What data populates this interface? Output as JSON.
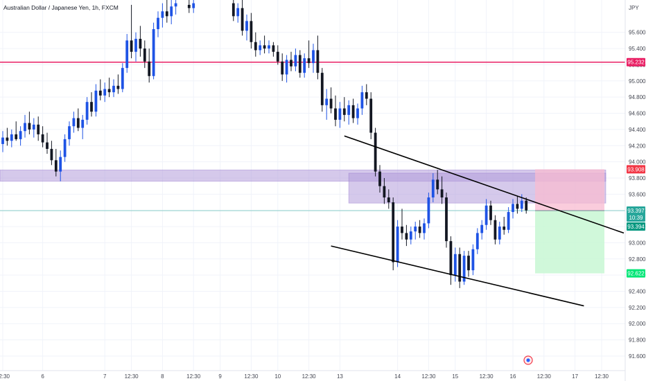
{
  "header": {
    "title": "Australian Dollar / Japanese Yen, 1h, FXCM",
    "currency": "JPY"
  },
  "colors": {
    "up": "#1e53e5",
    "down": "#131722",
    "resistance_line": "#e91e63",
    "supply_zone": "#b39ddb",
    "stop_zone": "#f8bbd0",
    "target_zone": "#c8f7d4",
    "current_price_line": "#26a69a",
    "current_badge": "#089981",
    "entry_badge": "#26a69a"
  },
  "chart_data": {
    "type": "candlestick",
    "symbol": "AUDJPY",
    "timeframe": "1h",
    "ylim": [
      91.42,
      96.0
    ],
    "y_ticks": [
      95.6,
      95.4,
      95.2,
      95.0,
      94.8,
      94.6,
      94.4,
      94.2,
      94.0,
      93.8,
      93.6,
      93.4,
      93.2,
      93.0,
      92.8,
      92.6,
      92.4,
      92.2,
      92.0,
      91.8,
      91.6
    ],
    "y_tick_labels": [
      "95.600",
      "95.400",
      "95.200",
      "95.000",
      "94.800",
      "94.600",
      "94.400",
      "94.200",
      "94.000",
      "93.800",
      "93.600",
      "93.400",
      "93.200",
      "93.000",
      "92.800",
      "92.600",
      "92.400",
      "92.200",
      "92.000",
      "91.800",
      "91.600"
    ],
    "x_ticks": [
      {
        "label": "12:30",
        "x": 0
      },
      {
        "label": "6",
        "x": 9
      },
      {
        "label": "7",
        "x": 23
      },
      {
        "label": "12:30",
        "x": 29
      },
      {
        "label": "8",
        "x": 36
      },
      {
        "label": "12:30",
        "x": 43
      },
      {
        "label": "9",
        "x": 49
      },
      {
        "label": "12:30",
        "x": 56
      },
      {
        "label": "10",
        "x": 62
      },
      {
        "label": "12:30",
        "x": 69
      },
      {
        "label": "13",
        "x": 76
      },
      {
        "label": "14",
        "x": 89
      },
      {
        "label": "12:30",
        "x": 96
      },
      {
        "label": "15",
        "x": 102
      },
      {
        "label": "12:30",
        "x": 109
      },
      {
        "label": "16",
        "x": 115
      },
      {
        "label": "12:30",
        "x": 122
      },
      {
        "label": "17",
        "x": 129
      },
      {
        "label": "12:30",
        "x": 135
      }
    ],
    "candles": [
      {
        "x": 0,
        "o": 94.22,
        "h": 94.38,
        "l": 94.12,
        "c": 94.3
      },
      {
        "x": 1,
        "o": 94.3,
        "h": 94.42,
        "l": 94.2,
        "c": 94.26
      },
      {
        "x": 2,
        "o": 94.26,
        "h": 94.4,
        "l": 94.18,
        "c": 94.34
      },
      {
        "x": 3,
        "o": 94.34,
        "h": 94.5,
        "l": 94.26,
        "c": 94.28
      },
      {
        "x": 4,
        "o": 94.28,
        "h": 94.44,
        "l": 94.2,
        "c": 94.38
      },
      {
        "x": 5,
        "o": 94.38,
        "h": 94.58,
        "l": 94.3,
        "c": 94.48
      },
      {
        "x": 6,
        "o": 94.48,
        "h": 94.62,
        "l": 94.34,
        "c": 94.4
      },
      {
        "x": 7,
        "o": 94.4,
        "h": 94.54,
        "l": 94.3,
        "c": 94.46
      },
      {
        "x": 8,
        "o": 94.46,
        "h": 94.56,
        "l": 94.26,
        "c": 94.34
      },
      {
        "x": 9,
        "o": 94.34,
        "h": 94.44,
        "l": 94.18,
        "c": 94.24
      },
      {
        "x": 10,
        "o": 94.24,
        "h": 94.36,
        "l": 94.1,
        "c": 94.16
      },
      {
        "x": 11,
        "o": 94.16,
        "h": 94.26,
        "l": 93.96,
        "c": 94.02
      },
      {
        "x": 12,
        "o": 94.02,
        "h": 94.16,
        "l": 93.82,
        "c": 93.88
      },
      {
        "x": 13,
        "o": 93.88,
        "h": 94.14,
        "l": 93.76,
        "c": 94.06
      },
      {
        "x": 14,
        "o": 94.06,
        "h": 94.34,
        "l": 94.0,
        "c": 94.28
      },
      {
        "x": 15,
        "o": 94.28,
        "h": 94.5,
        "l": 94.2,
        "c": 94.44
      },
      {
        "x": 16,
        "o": 94.44,
        "h": 94.62,
        "l": 94.36,
        "c": 94.54
      },
      {
        "x": 17,
        "o": 94.54,
        "h": 94.66,
        "l": 94.38,
        "c": 94.42
      },
      {
        "x": 18,
        "o": 94.42,
        "h": 94.58,
        "l": 94.28,
        "c": 94.52
      },
      {
        "x": 19,
        "o": 94.52,
        "h": 94.8,
        "l": 94.46,
        "c": 94.74
      },
      {
        "x": 20,
        "o": 94.74,
        "h": 94.86,
        "l": 94.56,
        "c": 94.62
      },
      {
        "x": 21,
        "o": 94.62,
        "h": 94.96,
        "l": 94.56,
        "c": 94.88
      },
      {
        "x": 22,
        "o": 94.88,
        "h": 95.02,
        "l": 94.76,
        "c": 94.82
      },
      {
        "x": 23,
        "o": 94.82,
        "h": 94.98,
        "l": 94.74,
        "c": 94.9
      },
      {
        "x": 24,
        "o": 94.9,
        "h": 95.04,
        "l": 94.8,
        "c": 94.86
      },
      {
        "x": 25,
        "o": 94.86,
        "h": 95.02,
        "l": 94.8,
        "c": 94.94
      },
      {
        "x": 26,
        "o": 94.94,
        "h": 95.08,
        "l": 94.84,
        "c": 94.9
      },
      {
        "x": 27,
        "o": 94.9,
        "h": 95.22,
        "l": 94.86,
        "c": 95.16
      },
      {
        "x": 28,
        "o": 95.16,
        "h": 95.58,
        "l": 95.1,
        "c": 95.5
      },
      {
        "x": 29,
        "o": 95.5,
        "h": 95.94,
        "l": 95.28,
        "c": 95.36
      },
      {
        "x": 30,
        "o": 95.36,
        "h": 95.6,
        "l": 95.24,
        "c": 95.52
      },
      {
        "x": 31,
        "o": 95.52,
        "h": 95.68,
        "l": 95.3,
        "c": 95.4
      },
      {
        "x": 32,
        "o": 95.4,
        "h": 95.5,
        "l": 95.16,
        "c": 95.24
      },
      {
        "x": 33,
        "o": 95.24,
        "h": 95.4,
        "l": 94.98,
        "c": 95.06
      },
      {
        "x": 34,
        "o": 95.06,
        "h": 95.72,
        "l": 95.02,
        "c": 95.64
      },
      {
        "x": 35,
        "o": 95.64,
        "h": 95.86,
        "l": 95.54,
        "c": 95.78
      },
      {
        "x": 36,
        "o": 95.78,
        "h": 95.96,
        "l": 95.66,
        "c": 95.86
      },
      {
        "x": 37,
        "o": 95.86,
        "h": 96.0,
        "l": 95.72,
        "c": 95.8
      },
      {
        "x": 38,
        "o": 95.8,
        "h": 96.0,
        "l": 95.7,
        "c": 95.92
      },
      {
        "x": 39,
        "o": 95.92,
        "h": 96.0,
        "l": 95.82,
        "c": 95.96
      },
      {
        "x": 42,
        "o": 95.94,
        "h": 96.0,
        "l": 95.84,
        "c": 95.9
      },
      {
        "x": 43,
        "o": 95.9,
        "h": 96.0,
        "l": 95.84,
        "c": 95.96
      },
      {
        "x": 52,
        "o": 95.96,
        "h": 96.0,
        "l": 95.74,
        "c": 95.8
      },
      {
        "x": 53,
        "o": 95.8,
        "h": 95.96,
        "l": 95.72,
        "c": 95.9
      },
      {
        "x": 54,
        "o": 95.9,
        "h": 96.0,
        "l": 95.56,
        "c": 95.62
      },
      {
        "x": 55,
        "o": 95.62,
        "h": 95.82,
        "l": 95.5,
        "c": 95.74
      },
      {
        "x": 56,
        "o": 95.74,
        "h": 95.84,
        "l": 95.4,
        "c": 95.48
      },
      {
        "x": 57,
        "o": 95.48,
        "h": 95.6,
        "l": 95.3,
        "c": 95.38
      },
      {
        "x": 58,
        "o": 95.38,
        "h": 95.5,
        "l": 95.32,
        "c": 95.44
      },
      {
        "x": 59,
        "o": 95.44,
        "h": 95.56,
        "l": 95.34,
        "c": 95.4
      },
      {
        "x": 60,
        "o": 95.4,
        "h": 95.5,
        "l": 95.34,
        "c": 95.44
      },
      {
        "x": 61,
        "o": 95.44,
        "h": 95.48,
        "l": 95.3,
        "c": 95.36
      },
      {
        "x": 62,
        "o": 95.36,
        "h": 95.44,
        "l": 95.2,
        "c": 95.24
      },
      {
        "x": 63,
        "o": 95.24,
        "h": 95.34,
        "l": 95.0,
        "c": 95.08
      },
      {
        "x": 64,
        "o": 95.08,
        "h": 95.32,
        "l": 94.98,
        "c": 95.26
      },
      {
        "x": 65,
        "o": 95.26,
        "h": 95.36,
        "l": 95.12,
        "c": 95.18
      },
      {
        "x": 66,
        "o": 95.18,
        "h": 95.4,
        "l": 95.12,
        "c": 95.32
      },
      {
        "x": 67,
        "o": 95.32,
        "h": 95.38,
        "l": 95.04,
        "c": 95.1
      },
      {
        "x": 68,
        "o": 95.1,
        "h": 95.34,
        "l": 95.04,
        "c": 95.28
      },
      {
        "x": 69,
        "o": 95.28,
        "h": 95.5,
        "l": 95.16,
        "c": 95.22
      },
      {
        "x": 70,
        "o": 95.22,
        "h": 95.46,
        "l": 95.1,
        "c": 95.38
      },
      {
        "x": 71,
        "o": 95.38,
        "h": 95.56,
        "l": 95.02,
        "c": 95.1
      },
      {
        "x": 72,
        "o": 95.1,
        "h": 95.16,
        "l": 94.62,
        "c": 94.7
      },
      {
        "x": 73,
        "o": 94.7,
        "h": 94.9,
        "l": 94.52,
        "c": 94.78
      },
      {
        "x": 74,
        "o": 94.78,
        "h": 94.92,
        "l": 94.6,
        "c": 94.66
      },
      {
        "x": 75,
        "o": 94.66,
        "h": 94.82,
        "l": 94.44,
        "c": 94.52
      },
      {
        "x": 76,
        "o": 94.52,
        "h": 94.74,
        "l": 94.42,
        "c": 94.66
      },
      {
        "x": 77,
        "o": 94.66,
        "h": 94.8,
        "l": 94.5,
        "c": 94.58
      },
      {
        "x": 78,
        "o": 94.58,
        "h": 94.76,
        "l": 94.46,
        "c": 94.7
      },
      {
        "x": 79,
        "o": 94.7,
        "h": 94.78,
        "l": 94.48,
        "c": 94.54
      },
      {
        "x": 80,
        "o": 94.54,
        "h": 94.72,
        "l": 94.46,
        "c": 94.66
      },
      {
        "x": 81,
        "o": 94.66,
        "h": 94.94,
        "l": 94.58,
        "c": 94.86
      },
      {
        "x": 82,
        "o": 94.86,
        "h": 94.96,
        "l": 94.7,
        "c": 94.78
      },
      {
        "x": 83,
        "o": 94.78,
        "h": 94.86,
        "l": 94.28,
        "c": 94.36
      },
      {
        "x": 84,
        "o": 94.36,
        "h": 94.42,
        "l": 93.82,
        "c": 93.88
      },
      {
        "x": 85,
        "o": 93.88,
        "h": 93.96,
        "l": 93.62,
        "c": 93.7
      },
      {
        "x": 86,
        "o": 93.7,
        "h": 93.8,
        "l": 93.48,
        "c": 93.56
      },
      {
        "x": 87,
        "o": 93.56,
        "h": 93.66,
        "l": 93.42,
        "c": 93.5
      },
      {
        "x": 88,
        "o": 93.5,
        "h": 93.56,
        "l": 92.66,
        "c": 92.76
      },
      {
        "x": 89,
        "o": 92.76,
        "h": 93.28,
        "l": 92.7,
        "c": 93.2
      },
      {
        "x": 90,
        "o": 93.2,
        "h": 93.42,
        "l": 93.04,
        "c": 93.12
      },
      {
        "x": 91,
        "o": 93.12,
        "h": 93.22,
        "l": 92.96,
        "c": 93.04
      },
      {
        "x": 92,
        "o": 93.04,
        "h": 93.2,
        "l": 92.98,
        "c": 93.14
      },
      {
        "x": 93,
        "o": 93.14,
        "h": 93.26,
        "l": 93.04,
        "c": 93.2
      },
      {
        "x": 94,
        "o": 93.2,
        "h": 93.28,
        "l": 93.06,
        "c": 93.12
      },
      {
        "x": 95,
        "o": 93.12,
        "h": 93.3,
        "l": 93.04,
        "c": 93.24
      },
      {
        "x": 96,
        "o": 93.24,
        "h": 93.62,
        "l": 93.18,
        "c": 93.56
      },
      {
        "x": 97,
        "o": 93.56,
        "h": 93.86,
        "l": 93.5,
        "c": 93.78
      },
      {
        "x": 98,
        "o": 93.78,
        "h": 93.9,
        "l": 93.6,
        "c": 93.66
      },
      {
        "x": 99,
        "o": 93.66,
        "h": 93.82,
        "l": 93.48,
        "c": 93.56
      },
      {
        "x": 100,
        "o": 93.56,
        "h": 93.62,
        "l": 92.94,
        "c": 93.02
      },
      {
        "x": 101,
        "o": 93.02,
        "h": 93.08,
        "l": 92.48,
        "c": 92.6
      },
      {
        "x": 102,
        "o": 92.6,
        "h": 92.94,
        "l": 92.52,
        "c": 92.86
      },
      {
        "x": 103,
        "o": 92.86,
        "h": 92.94,
        "l": 92.44,
        "c": 92.52
      },
      {
        "x": 104,
        "o": 92.52,
        "h": 92.9,
        "l": 92.48,
        "c": 92.84
      },
      {
        "x": 105,
        "o": 92.84,
        "h": 92.9,
        "l": 92.58,
        "c": 92.66
      },
      {
        "x": 106,
        "o": 92.66,
        "h": 92.98,
        "l": 92.6,
        "c": 92.92
      },
      {
        "x": 107,
        "o": 92.92,
        "h": 93.18,
        "l": 92.86,
        "c": 93.12
      },
      {
        "x": 108,
        "o": 93.12,
        "h": 93.28,
        "l": 93.04,
        "c": 93.22
      },
      {
        "x": 109,
        "o": 93.22,
        "h": 93.54,
        "l": 93.16,
        "c": 93.46
      },
      {
        "x": 110,
        "o": 93.46,
        "h": 93.52,
        "l": 93.22,
        "c": 93.28
      },
      {
        "x": 111,
        "o": 93.28,
        "h": 93.34,
        "l": 92.98,
        "c": 93.04
      },
      {
        "x": 112,
        "o": 93.04,
        "h": 93.26,
        "l": 92.98,
        "c": 93.2
      },
      {
        "x": 113,
        "o": 93.2,
        "h": 93.32,
        "l": 93.1,
        "c": 93.16
      },
      {
        "x": 114,
        "o": 93.16,
        "h": 93.44,
        "l": 93.12,
        "c": 93.38
      },
      {
        "x": 115,
        "o": 93.38,
        "h": 93.54,
        "l": 93.3,
        "c": 93.48
      },
      {
        "x": 116,
        "o": 93.48,
        "h": 93.58,
        "l": 93.36,
        "c": 93.42
      },
      {
        "x": 117,
        "o": 93.42,
        "h": 93.6,
        "l": 93.38,
        "c": 93.52
      },
      {
        "x": 118,
        "o": 93.52,
        "h": 93.56,
        "l": 93.36,
        "c": 93.4
      }
    ],
    "levels": [
      {
        "name": "resistance",
        "price": 95.232,
        "label": "95.232"
      }
    ],
    "zones": [
      {
        "name": "supply-zone-wide",
        "x_from": -2,
        "x_to": 141,
        "y_from": 93.76,
        "y_to": 93.9
      },
      {
        "name": "supply-zone-box",
        "x_from": 78,
        "x_to": 136,
        "y_from": 93.49,
        "y_to": 93.86
      }
    ],
    "trendlines": [
      {
        "name": "upper-trendline",
        "points": [
          [
            77,
            94.32
          ],
          [
            140,
            93.12
          ]
        ]
      },
      {
        "name": "lower-trendline",
        "points": [
          [
            74,
            92.96
          ],
          [
            131,
            92.22
          ]
        ]
      }
    ],
    "position": {
      "type": "short",
      "x_from": 120,
      "x_to": 142,
      "entry": 93.397,
      "stop": 93.908,
      "target": 92.622
    },
    "price_labels": {
      "stop": "93.908",
      "entry": "93.397",
      "countdown": "10:39",
      "current": "93.394",
      "target": "92.622"
    }
  }
}
